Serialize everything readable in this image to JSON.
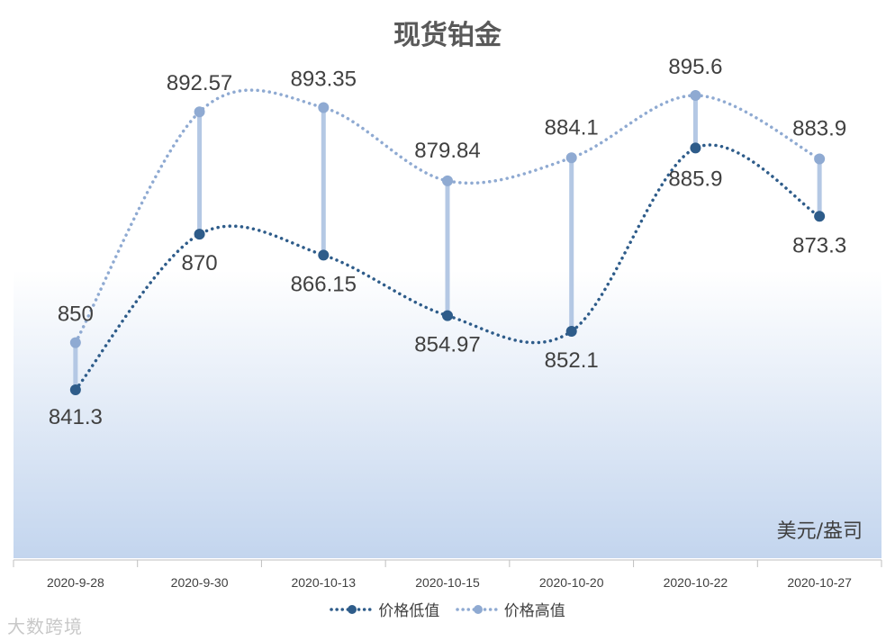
{
  "chart_data": {
    "type": "line",
    "title": "现货铂金",
    "unit_label": "美元/盎司",
    "categories": [
      "2020-9-28",
      "2020-9-30",
      "2020-10-13",
      "2020-10-15",
      "2020-10-20",
      "2020-10-22",
      "2020-10-27"
    ],
    "series": [
      {
        "name": "价格低值",
        "values": [
          841.3,
          870,
          866.15,
          854.97,
          852.1,
          885.9,
          873.3
        ],
        "labels": [
          "841.3",
          "870",
          "866.15",
          "854.97",
          "852.1",
          "885.9",
          "873.3"
        ],
        "color": "#2e5c8a"
      },
      {
        "name": "价格高值",
        "values": [
          850,
          892.57,
          893.35,
          879.84,
          884.1,
          895.6,
          883.9
        ],
        "labels": [
          "850",
          "892.57",
          "893.35",
          "879.84",
          "884.1",
          "895.6",
          "883.9"
        ],
        "color": "#8faad2"
      }
    ],
    "high_low_lines": true,
    "grid": false,
    "legend_position": "bottom"
  },
  "watermark": "大数跨境"
}
